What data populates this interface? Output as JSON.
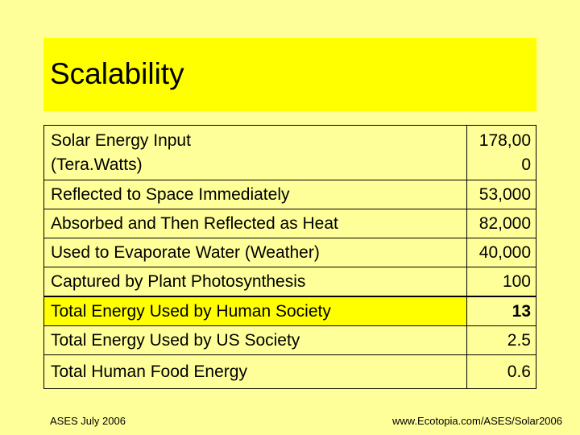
{
  "title": "Scalability",
  "rows": [
    {
      "label_line1": "Solar Energy Input",
      "label_line2": "(Tera.Watts)",
      "value_line1": "178,00",
      "value_line2": "0"
    },
    {
      "label": "Reflected to Space Immediately",
      "value": "53,000"
    },
    {
      "label": "Absorbed and Then Reflected as Heat",
      "value": "82,000"
    },
    {
      "label": "Used to Evaporate Water (Weather)",
      "value": "40,000"
    },
    {
      "label": "Captured by Plant Photosynthesis",
      "value": "100"
    },
    {
      "label": "Total Energy Used by Human Society",
      "value": "13"
    },
    {
      "label": "Total Energy Used by US Society",
      "value": "2.5"
    },
    {
      "label": "Total Human Food Energy",
      "value": "0.6"
    }
  ],
  "footer": {
    "left": "ASES July 2006",
    "right": "www.Ecotopia.com/ASES/Solar2006"
  },
  "colors": {
    "background": "#ffff99",
    "title_band": "#ffff00",
    "highlight": "#ffff00"
  }
}
